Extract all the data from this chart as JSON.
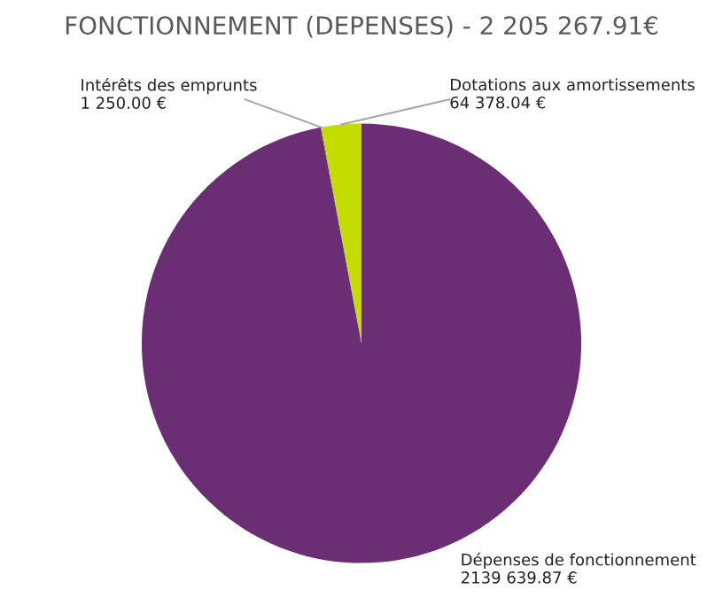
{
  "chart_data": {
    "type": "pie",
    "title": "FONCTIONNEMENT (DEPENSES) - 2 205 267.91€",
    "categories": [
      "Dépenses de fonctionnement",
      "Intérêts des emprunts",
      "Dotations aux amortissements"
    ],
    "values": [
      2139639.87,
      1250.0,
      64378.04
    ],
    "colors": [
      "#6b2d74",
      "#8aa000",
      "#c5dc00"
    ],
    "value_labels": [
      "2139 639.87 €",
      "1 250.00 €",
      "64 378.04 €"
    ],
    "legend": false
  }
}
